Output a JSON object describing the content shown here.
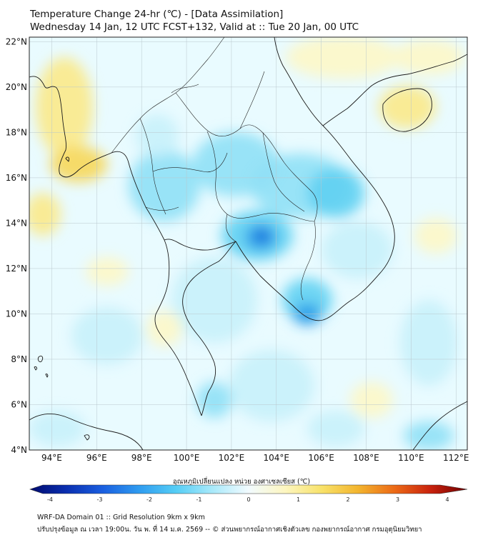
{
  "title": {
    "line1": "Temperature Change 24-hr (℃) - [Data Assimilation]",
    "line2": "Wednesday 14 Jan, 12 UTC FCST+132, Valid at :: Tue 20 Jan, 00 UTC"
  },
  "map": {
    "lat_labels": [
      "22°N",
      "20°N",
      "18°N",
      "16°N",
      "14°N",
      "12°N",
      "10°N",
      "8°N",
      "6°N",
      "4°N"
    ],
    "lon_labels": [
      "94°E",
      "96°E",
      "98°E",
      "100°E",
      "102°E",
      "104°E",
      "106°E",
      "108°E",
      "110°E",
      "112°E"
    ],
    "lat_range": [
      4,
      22.2
    ],
    "lon_range": [
      93,
      112.5
    ],
    "colors": {
      "background": "#e9fbff",
      "light_cyan": "#c8f1fb",
      "cyan": "#8fe0f6",
      "bright_cyan": "#5fd0f2",
      "blue": "#2a9be8",
      "dark_blue": "#1565d8",
      "yellow_pale": "#fdf7c8",
      "yellow": "#fbe98a",
      "orange_yellow": "#f7d75a",
      "land_border": "#1a1a1a"
    }
  },
  "colorbar": {
    "title": "อุณหภูมิเปลี่ยนแปลง หน่วย องศาเซลเซียส (℃)",
    "ticks": [
      "-4",
      "-3",
      "-2",
      "-1",
      "0",
      "1",
      "2",
      "3",
      "4"
    ],
    "range": [
      -4,
      4
    ],
    "color_stops": [
      "#000a6e",
      "#0a2fb0",
      "#1a5fe0",
      "#2f9cf0",
      "#55cdf5",
      "#a8e9fa",
      "#f2fbff",
      "#fdf6c0",
      "#f8e26a",
      "#f3b52e",
      "#ec6a16",
      "#c8210d",
      "#6e0000"
    ]
  },
  "footer": {
    "line1": "WRF-DA Domain 01 :: Grid Resolution 9km x 9km",
    "line2": "ปรับปรุงข้อมูล ณ เวลา 19:00น. วัน พ. ที่ 14 ม.ค. 2569 -- © ส่วนพยากรณ์อากาศเชิงตัวเลข กองพยากรณ์อากาศ กรมอุตุนิยมวิทยา"
  }
}
